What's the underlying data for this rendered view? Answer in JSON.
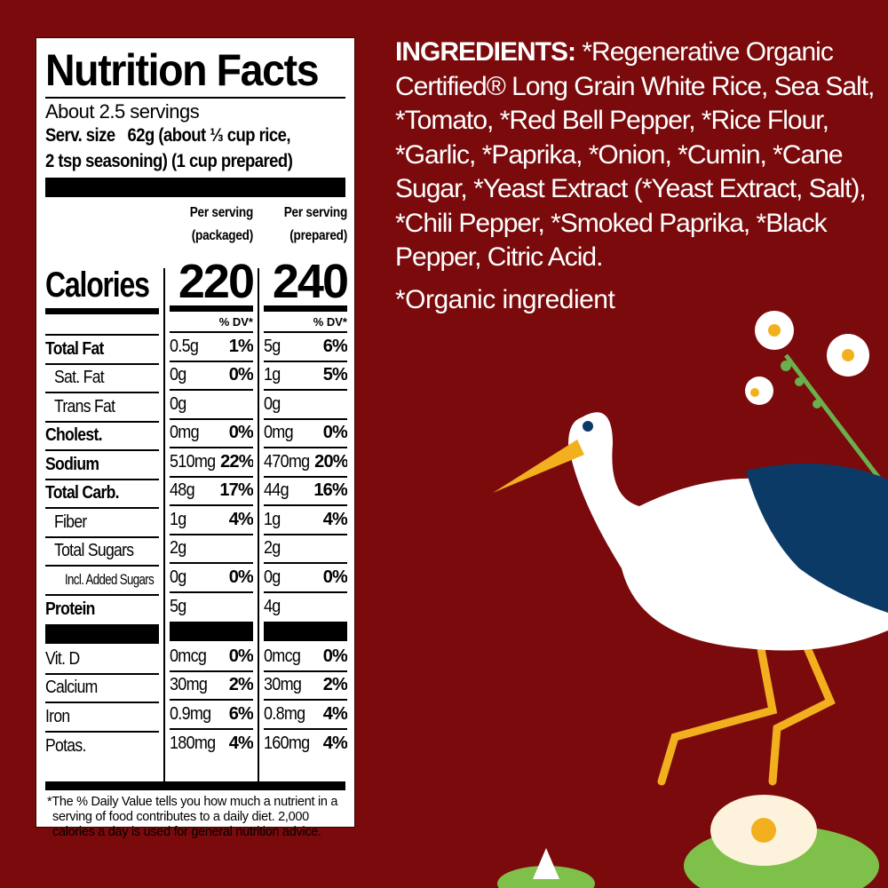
{
  "nutrition": {
    "title": "Nutrition Facts",
    "servings": "About 2.5 servings",
    "serv_size_label": "Serv. size",
    "serv_size_value": "62g (about ⅓ cup rice,",
    "serv_size_value2": "2 tsp seasoning) (1 cup prepared)",
    "col1_header": [
      "Per serving",
      "(packaged)"
    ],
    "col2_header": [
      "Per serving",
      "(prepared)"
    ],
    "calories_label": "Calories",
    "calories": [
      "220",
      "240"
    ],
    "dv_header": "% DV*",
    "rows": [
      {
        "label": "Total Fat",
        "style": "b",
        "pkg": "0.5g",
        "pkg_dv": "1%",
        "prep": "5g",
        "prep_dv": "6%"
      },
      {
        "label": "Sat. Fat",
        "style": "i1",
        "pkg": "0g",
        "pkg_dv": "0%",
        "prep": "1g",
        "prep_dv": "5%"
      },
      {
        "label": "Trans Fat",
        "style": "i1",
        "pkg": "0g",
        "pkg_dv": "",
        "prep": "0g",
        "prep_dv": ""
      },
      {
        "label": "Cholest.",
        "style": "b",
        "pkg": "0mg",
        "pkg_dv": "0%",
        "prep": "0mg",
        "prep_dv": "0%"
      },
      {
        "label": "Sodium",
        "style": "b",
        "pkg": "510mg",
        "pkg_dv": "22%",
        "prep": "470mg",
        "prep_dv": "20%"
      },
      {
        "label": "Total Carb.",
        "style": "b",
        "pkg": "48g",
        "pkg_dv": "17%",
        "prep": "44g",
        "prep_dv": "16%"
      },
      {
        "label": "Fiber",
        "style": "i1",
        "pkg": "1g",
        "pkg_dv": "4%",
        "prep": "1g",
        "prep_dv": "4%"
      },
      {
        "label": "Total Sugars",
        "style": "i1",
        "pkg": "2g",
        "pkg_dv": "",
        "prep": "2g",
        "prep_dv": ""
      },
      {
        "label": "Incl. Added Sugars",
        "style": "i2",
        "pkg": "0g",
        "pkg_dv": "0%",
        "prep": "0g",
        "prep_dv": "0%"
      },
      {
        "label": "Protein",
        "style": "b",
        "pkg": "5g",
        "pkg_dv": "",
        "prep": "4g",
        "prep_dv": ""
      }
    ],
    "vitamins": [
      {
        "label": "Vit. D",
        "pkg": "0mcg",
        "pkg_dv": "0%",
        "prep": "0mcg",
        "prep_dv": "0%"
      },
      {
        "label": "Calcium",
        "pkg": "30mg",
        "pkg_dv": "2%",
        "prep": "30mg",
        "prep_dv": "2%"
      },
      {
        "label": "Iron",
        "pkg": "0.9mg",
        "pkg_dv": "6%",
        "prep": "0.8mg",
        "prep_dv": "4%"
      },
      {
        "label": "Potas.",
        "pkg": "180mg",
        "pkg_dv": "4%",
        "prep": "160mg",
        "prep_dv": "4%"
      }
    ],
    "footnote": "*The % Daily Value tells you how much a nutrient in a serving of food contributes to a daily diet. 2,000 calories a day is used for general nutrition advice."
  },
  "ingredients": {
    "heading": "INGREDIENTS:",
    "text": " *Regenerative Organic Certified® Long Grain White Rice, Sea Salt, *Tomato, *Red Bell Pepper, *Rice Flour, *Garlic, *Paprika, *Onion, *Cumin, *Cane Sugar, *Yeast Extract (*Yeast Extract, Salt), *Chili Pepper, *Smoked Paprika, *Black Pepper, Citric Acid.",
    "organic_note": "*Organic ingredient"
  },
  "colors": {
    "background": "#7b0a0c",
    "stork_wing": "#0b3a66",
    "beak": "#f2b01e",
    "lily_pad": "#7fc04a"
  }
}
